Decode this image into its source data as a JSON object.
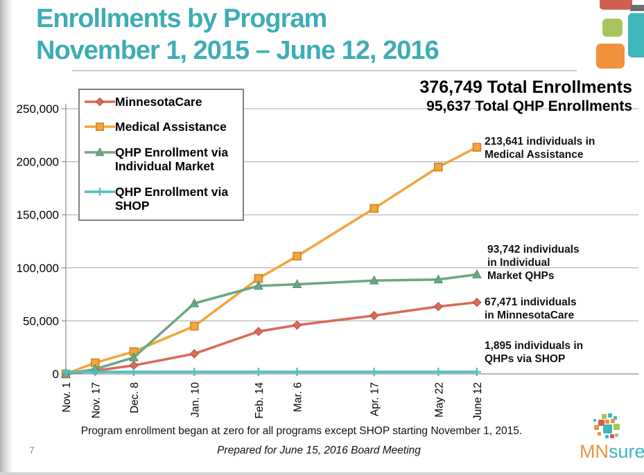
{
  "colors": {
    "title_teal": "#3dadb5",
    "brand_red": "#d0604e",
    "brand_orange": "#f0913b",
    "brand_green": "#a8c45e",
    "brand_teal": "#3fb6bc",
    "dark_gray": "#6e6e6e"
  },
  "header": {
    "title_line1": "Enrollments by Program",
    "title_line2": "November 1, 2015 – June 12, 2016"
  },
  "totals": {
    "line1": "376,749 Total Enrollments",
    "line2": "95,637 Total QHP Enrollments"
  },
  "annotations": {
    "medical_assistance": "213,641 individuals in\nMedical Assistance",
    "individual_qhp": "93,742 individuals\nin Individual\nMarket QHPs",
    "minnesotacare": "67,471 individuals\nin MinnesotaCare",
    "shop": "1,895 individuals in\nQHPs via SHOP"
  },
  "footer": {
    "footnote": "Program enrollment began at zero for all programs except SHOP starting November 1, 2015.",
    "prepared": "Prepared for June 15, 2016 Board Meeting",
    "page_number": "7",
    "logo_mn": "MN",
    "logo_sure": "sure"
  },
  "chart_data": {
    "type": "line",
    "title": "Enrollments by Program November 1, 2015 – June 12, 2016",
    "x_labels": [
      "Nov. 1",
      "Nov. 17",
      "Dec. 8",
      "Jan. 10",
      "Feb. 14",
      "Mar. 6",
      "Apr. 17",
      "May 22",
      "June 12"
    ],
    "x_days": [
      0,
      16,
      37,
      70,
      105,
      126,
      168,
      203,
      224
    ],
    "ylim": [
      0,
      250000
    ],
    "yticks": [
      0,
      50000,
      100000,
      150000,
      200000,
      250000
    ],
    "ytick_labels": [
      "0",
      "50,000",
      "100,000",
      "150,000",
      "200,000",
      "250,000"
    ],
    "grid": true,
    "legend_position": "top-left",
    "series": [
      {
        "name": "MinnesotaCare",
        "marker": "diamond",
        "color": "#dc6a57",
        "border": "#b85041",
        "values": [
          0,
          3000,
          8000,
          19000,
          40000,
          46000,
          55000,
          63500,
          67471
        ],
        "final_value": 67471
      },
      {
        "name": "Medical Assistance",
        "marker": "square",
        "color": "#f2a63c",
        "border": "#cf8428",
        "values": [
          0,
          10500,
          21000,
          45000,
          90000,
          111000,
          156000,
          195000,
          213641
        ],
        "final_value": 213641
      },
      {
        "name": "QHP Enrollment via Individual Market",
        "marker": "triangle",
        "color": "#6aa884",
        "border": "#568c6b",
        "values": [
          0,
          4500,
          15500,
          66500,
          83000,
          84500,
          88000,
          89000,
          93742
        ],
        "final_value": 93742
      },
      {
        "name": "QHP Enrollment via SHOP",
        "marker": "plus",
        "color": "#4fbfc4",
        "border": "#4fbfc4",
        "values": [
          1895,
          1895,
          1895,
          1895,
          1895,
          1895,
          1895,
          1895,
          1895
        ],
        "final_value": 1895
      }
    ]
  }
}
